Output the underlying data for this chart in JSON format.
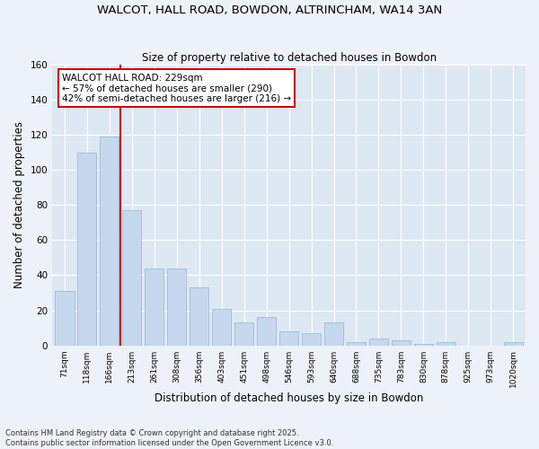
{
  "title": "WALCOT, HALL ROAD, BOWDON, ALTRINCHAM, WA14 3AN",
  "subtitle": "Size of property relative to detached houses in Bowdon",
  "xlabel": "Distribution of detached houses by size in Bowdon",
  "ylabel": "Number of detached properties",
  "categories": [
    "71sqm",
    "118sqm",
    "166sqm",
    "213sqm",
    "261sqm",
    "308sqm",
    "356sqm",
    "403sqm",
    "451sqm",
    "498sqm",
    "546sqm",
    "593sqm",
    "640sqm",
    "688sqm",
    "735sqm",
    "783sqm",
    "830sqm",
    "878sqm",
    "925sqm",
    "973sqm",
    "1020sqm"
  ],
  "values": [
    31,
    110,
    119,
    77,
    44,
    44,
    33,
    21,
    13,
    16,
    8,
    7,
    13,
    2,
    4,
    3,
    1,
    2,
    0,
    0,
    2
  ],
  "bar_color": "#c5d8ee",
  "bar_edge_color": "#a0bcd8",
  "vline_color": "#cc0000",
  "vline_x": 2.5,
  "annotation_text": "WALCOT HALL ROAD: 229sqm\n← 57% of detached houses are smaller (290)\n42% of semi-detached houses are larger (216) →",
  "annotation_box_color": "#ffffff",
  "annotation_box_edge_color": "#cc0000",
  "ylim": [
    0,
    160
  ],
  "yticks": [
    0,
    20,
    40,
    60,
    80,
    100,
    120,
    140,
    160
  ],
  "footer_line1": "Contains HM Land Registry data © Crown copyright and database right 2025.",
  "footer_line2": "Contains public sector information licensed under the Open Government Licence v3.0.",
  "bg_color": "#edf2f8",
  "plot_bg_color": "#dde8f3"
}
